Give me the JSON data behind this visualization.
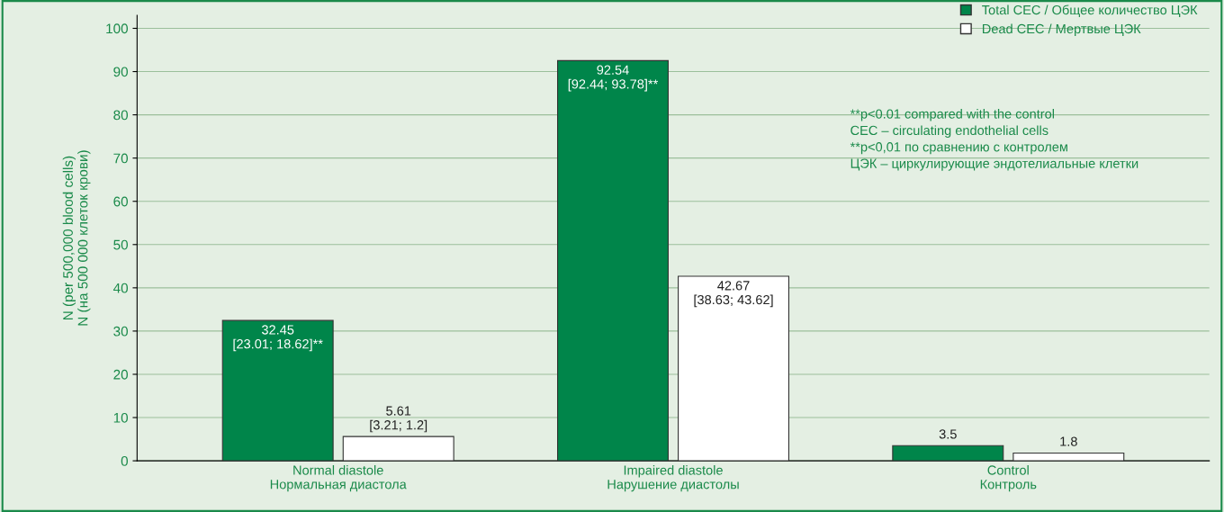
{
  "chart_data": {
    "type": "bar",
    "categories": [
      "Normal diastole\nНормальная диастола",
      "Impaired diastole\nНарушение диастолы",
      "Control\nКонтроль"
    ],
    "ylabel": "N (per 500,000 blood cells)\nN (на 500 000 клеток крови)",
    "series": [
      {
        "name": "Total CEC / Общее количество ЦЭК",
        "color": "#00854a",
        "values": [
          32.45,
          92.54,
          3.5
        ],
        "value_labels": [
          "32.45\n[23.01; 18.62]**",
          "92.54\n[92.44; 93.78]**",
          "3.5"
        ]
      },
      {
        "name": "Dead CEC / Мертвые ЦЭК",
        "color": "#ffffff",
        "values": [
          5.61,
          42.67,
          1.8
        ],
        "value_labels": [
          "5.61\n[3.21; 1.2]",
          "42.67\n[38.63; 43.62]",
          "1.8"
        ]
      }
    ],
    "annotations": [
      "**p<0.01 compared with the control\nCEC – circulating endothelial cells\n**p<0,01 по сравнению с контролем\nЦЭК – циркулирующие эндотелиальные клетки"
    ],
    "ylim": [
      0,
      103
    ],
    "yticks": [
      0,
      10,
      20,
      30,
      40,
      50,
      60,
      70,
      80,
      90,
      100
    ],
    "grid": "y",
    "legend": "top right"
  }
}
